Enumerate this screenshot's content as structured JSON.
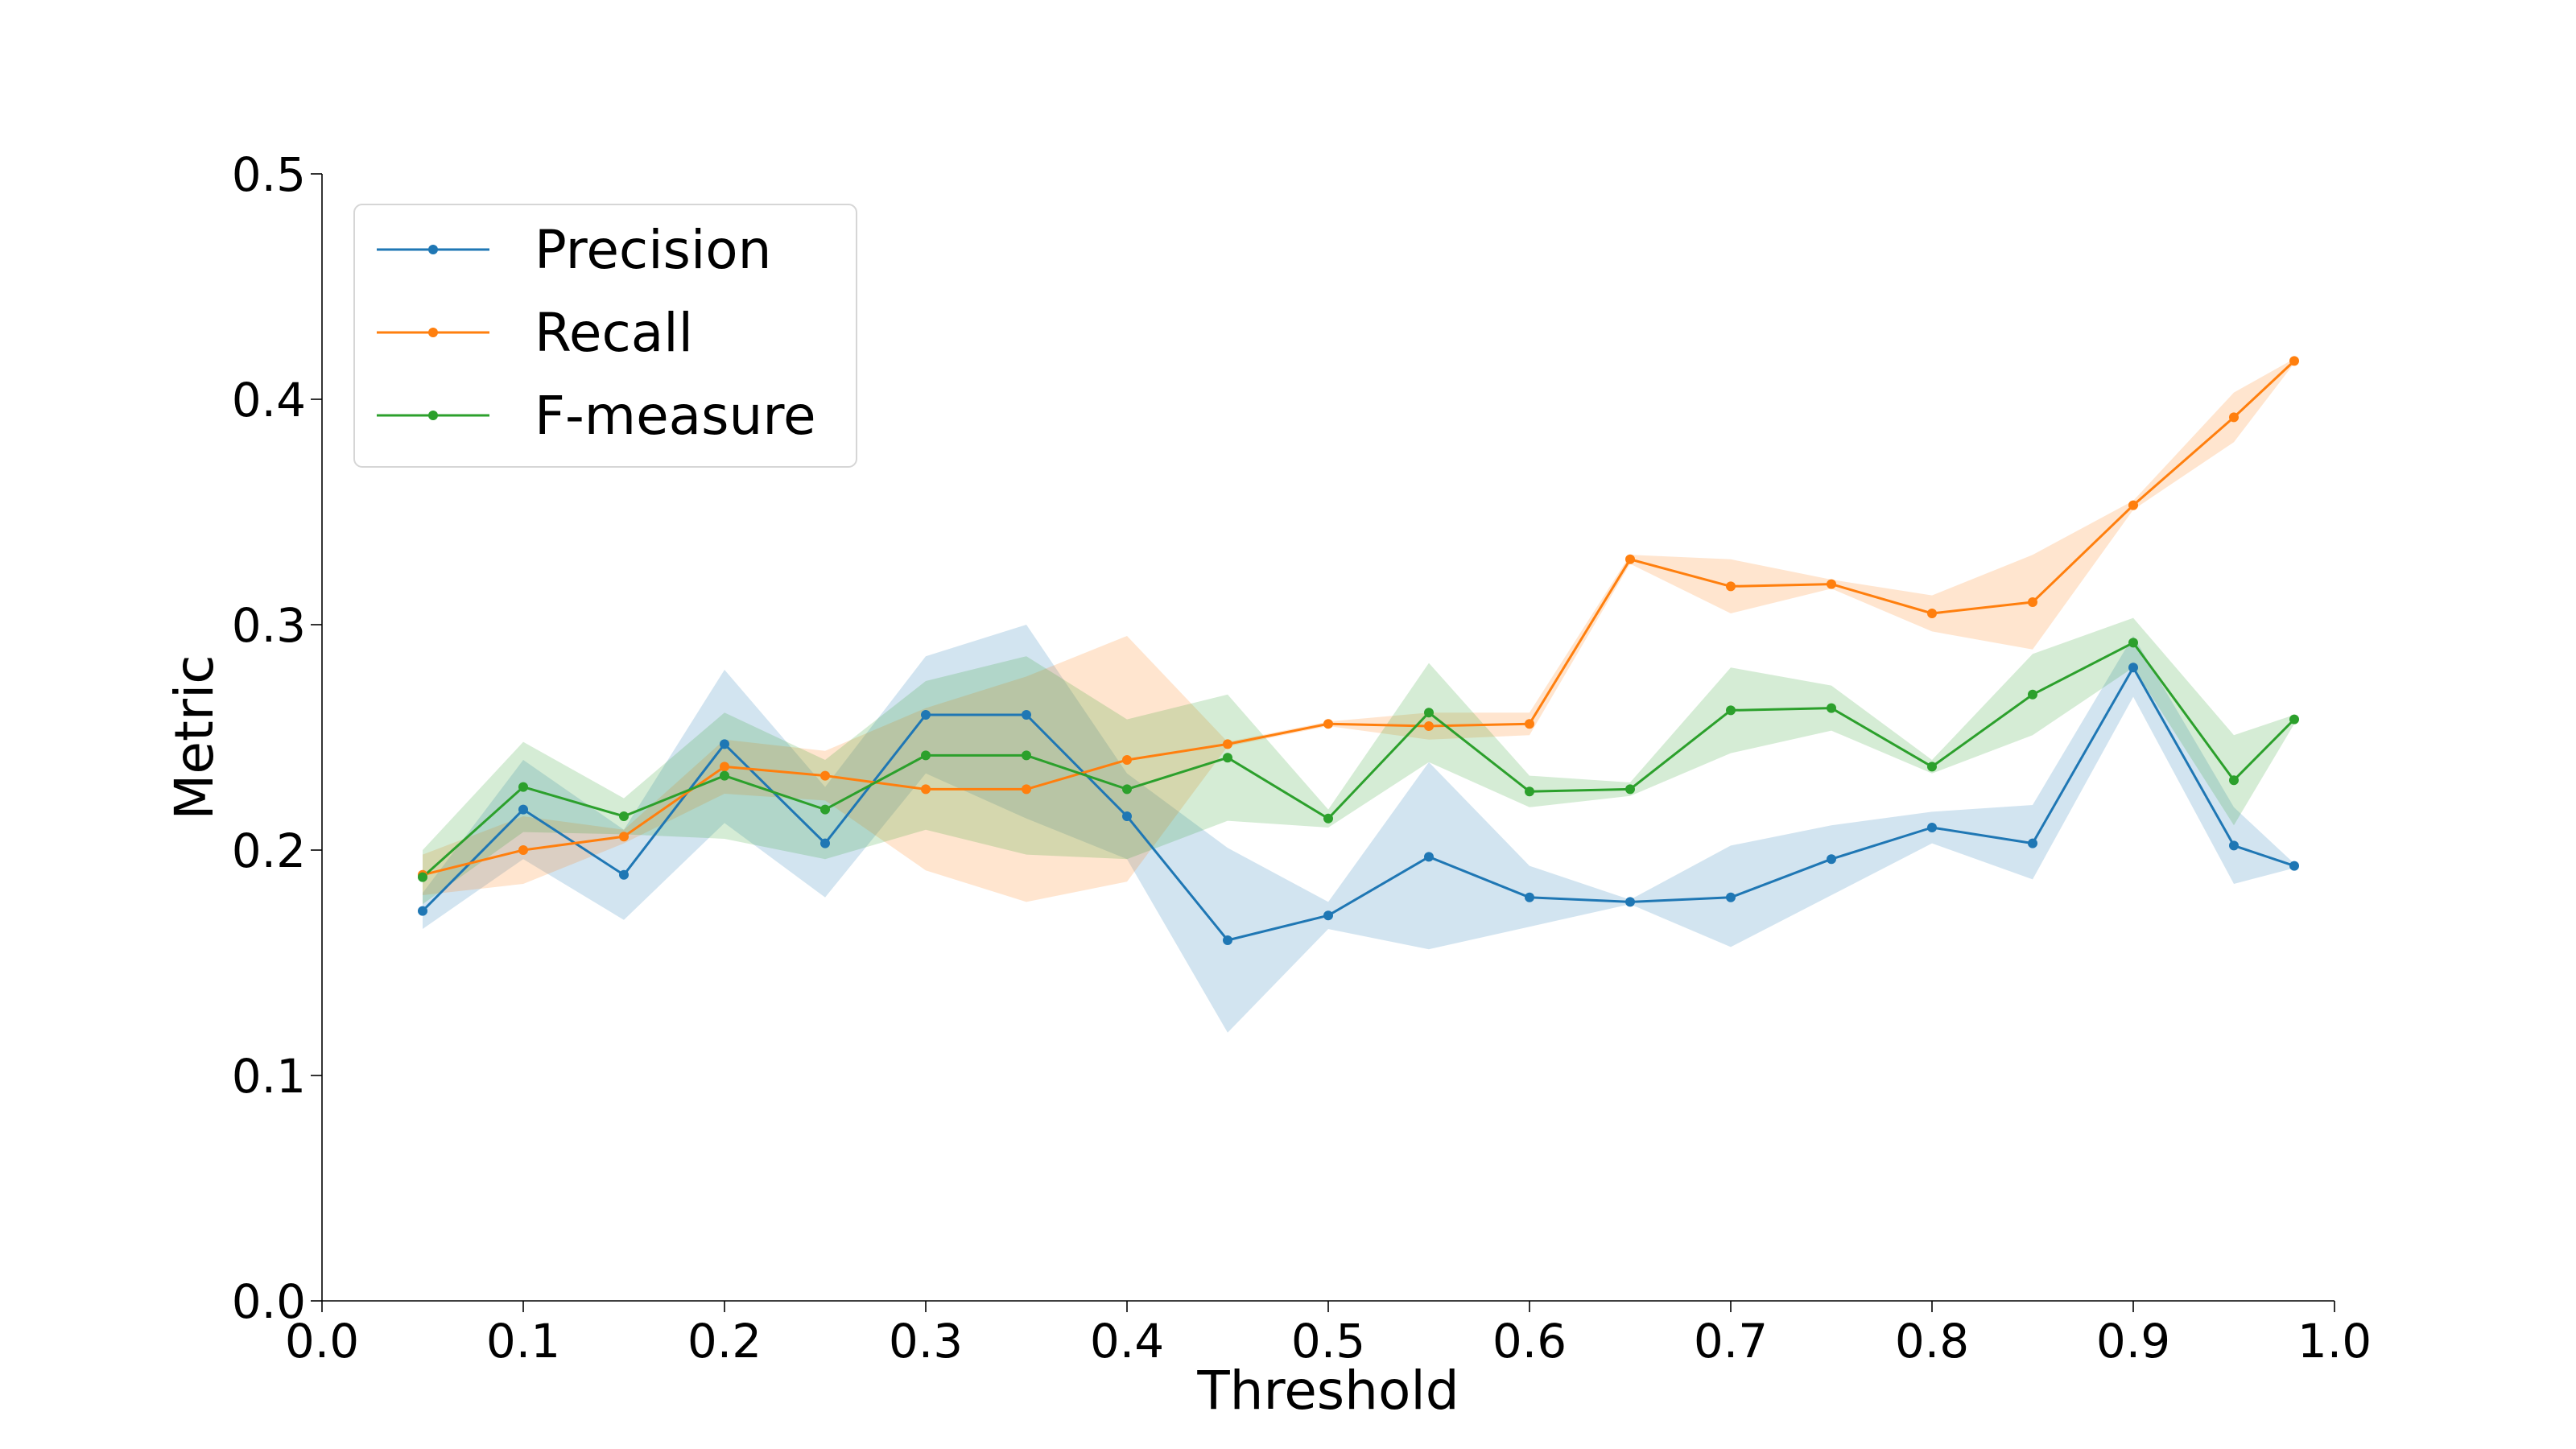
{
  "chart_data": {
    "type": "line",
    "xlabel": "Threshold",
    "ylabel": "Metric",
    "xlim": [
      0.0,
      1.0
    ],
    "ylim": [
      0.0,
      0.5
    ],
    "xticks": [
      "0.0",
      "0.1",
      "0.2",
      "0.3",
      "0.4",
      "0.5",
      "0.6",
      "0.7",
      "0.8",
      "0.9",
      "1.0"
    ],
    "yticks": [
      "0.0",
      "0.1",
      "0.2",
      "0.3",
      "0.4",
      "0.5"
    ],
    "grid": false,
    "legend_position": "top-left",
    "x": [
      0.05,
      0.1,
      0.15,
      0.2,
      0.25,
      0.3,
      0.35,
      0.4,
      0.45,
      0.5,
      0.55,
      0.6,
      0.65,
      0.7,
      0.75,
      0.8,
      0.85,
      0.9,
      0.95,
      0.98
    ],
    "series": [
      {
        "name": "Precision",
        "color": "#1f77b4",
        "values": [
          0.173,
          0.218,
          0.189,
          0.247,
          0.203,
          0.26,
          0.26,
          0.215,
          0.16,
          0.171,
          0.197,
          0.179,
          0.177,
          0.179,
          0.196,
          0.21,
          0.203,
          0.281,
          0.202,
          0.193
        ],
        "lower": [
          0.165,
          0.196,
          0.169,
          0.212,
          0.179,
          0.234,
          0.214,
          0.196,
          0.119,
          0.165,
          0.156,
          0.166,
          0.176,
          0.157,
          0.18,
          0.203,
          0.187,
          0.268,
          0.185,
          0.192
        ],
        "upper": [
          0.181,
          0.24,
          0.209,
          0.28,
          0.228,
          0.286,
          0.3,
          0.234,
          0.201,
          0.177,
          0.239,
          0.193,
          0.178,
          0.202,
          0.211,
          0.217,
          0.22,
          0.295,
          0.219,
          0.194
        ]
      },
      {
        "name": "Recall",
        "color": "#ff7f0e",
        "values": [
          0.189,
          0.2,
          0.206,
          0.237,
          0.233,
          0.227,
          0.227,
          0.24,
          0.247,
          0.256,
          0.255,
          0.256,
          0.329,
          0.317,
          0.318,
          0.305,
          0.31,
          0.353,
          0.392,
          0.417
        ],
        "lower": [
          0.18,
          0.185,
          0.203,
          0.225,
          0.222,
          0.191,
          0.177,
          0.186,
          0.246,
          0.255,
          0.249,
          0.251,
          0.327,
          0.305,
          0.316,
          0.297,
          0.289,
          0.351,
          0.381,
          0.416
        ],
        "upper": [
          0.198,
          0.215,
          0.209,
          0.249,
          0.244,
          0.263,
          0.277,
          0.295,
          0.248,
          0.257,
          0.261,
          0.261,
          0.331,
          0.329,
          0.32,
          0.313,
          0.331,
          0.355,
          0.403,
          0.418
        ]
      },
      {
        "name": "F-measure",
        "color": "#2ca02c",
        "values": [
          0.188,
          0.228,
          0.215,
          0.233,
          0.218,
          0.242,
          0.242,
          0.227,
          0.241,
          0.214,
          0.261,
          0.226,
          0.227,
          0.262,
          0.263,
          0.237,
          0.269,
          0.292,
          0.231,
          0.258
        ],
        "lower": [
          0.176,
          0.208,
          0.207,
          0.205,
          0.196,
          0.209,
          0.198,
          0.196,
          0.213,
          0.21,
          0.239,
          0.219,
          0.224,
          0.243,
          0.253,
          0.234,
          0.251,
          0.281,
          0.211,
          0.256
        ],
        "upper": [
          0.2,
          0.248,
          0.223,
          0.261,
          0.24,
          0.275,
          0.286,
          0.258,
          0.269,
          0.218,
          0.283,
          0.233,
          0.23,
          0.281,
          0.273,
          0.24,
          0.287,
          0.303,
          0.251,
          0.26
        ]
      }
    ]
  }
}
